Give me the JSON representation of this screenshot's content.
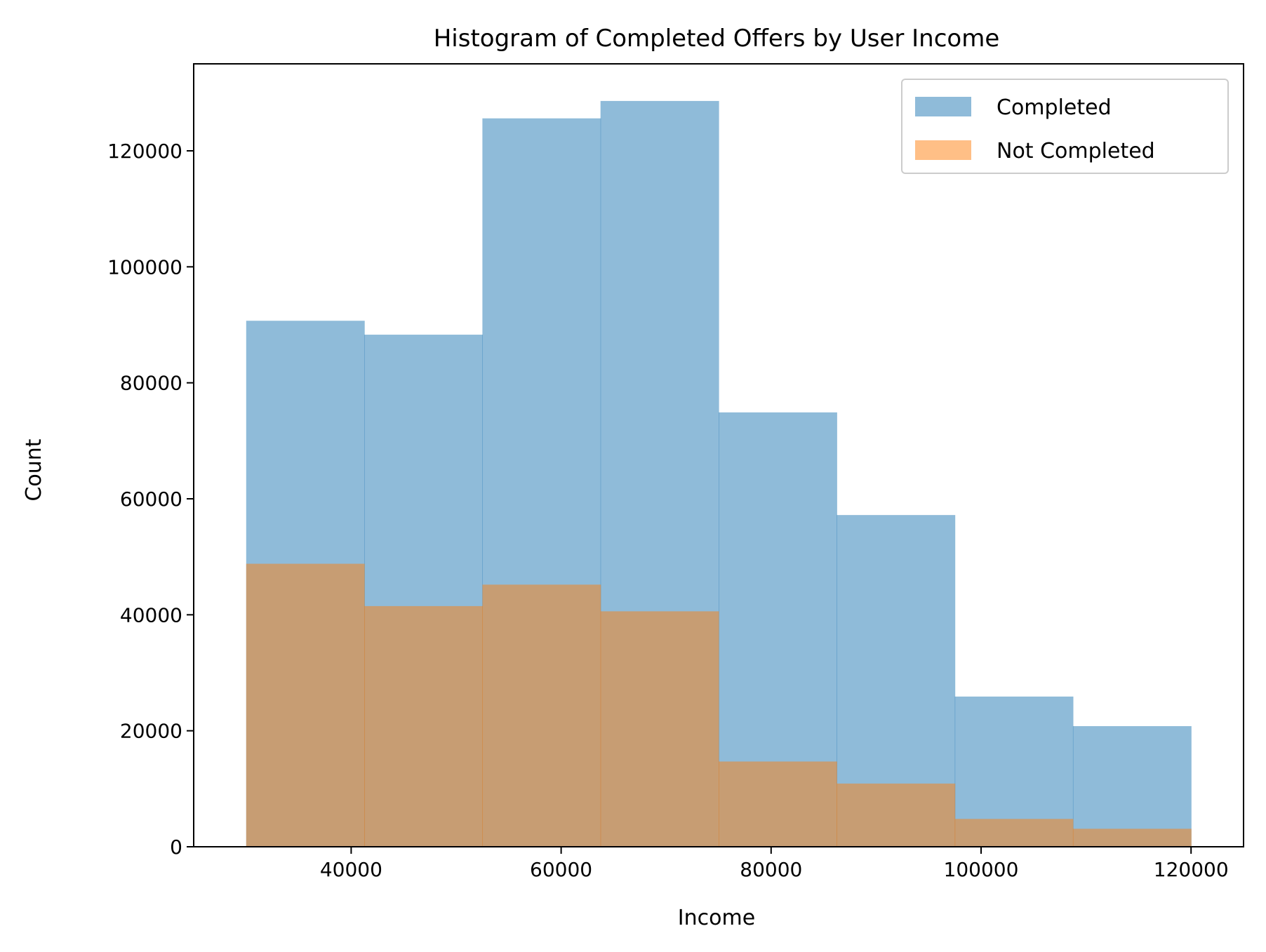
{
  "chart_data": {
    "type": "bar",
    "subtype": "overlaid-histogram",
    "title": "Histogram of Completed Offers by User Income",
    "xlabel": "Income",
    "ylabel": "Count",
    "xlim": [
      25000,
      125000
    ],
    "ylim": [
      0,
      135000
    ],
    "xticks": [
      40000,
      60000,
      80000,
      100000,
      120000
    ],
    "yticks": [
      0,
      20000,
      40000,
      60000,
      80000,
      100000,
      120000
    ],
    "bin_edges": [
      30000,
      41250,
      52500,
      63750,
      75000,
      86250,
      97500,
      108750,
      120000
    ],
    "legend_position": "upper right",
    "series": [
      {
        "name": "Completed",
        "color": "#1f77b4",
        "alpha": 0.5,
        "values": [
          90700,
          88300,
          125600,
          128600,
          74900,
          57200,
          25900,
          20800
        ]
      },
      {
        "name": "Not Completed",
        "color": "#ff7f0e",
        "alpha": 0.5,
        "values": [
          48800,
          41500,
          45200,
          40600,
          14700,
          10900,
          4800,
          3100
        ]
      }
    ]
  }
}
